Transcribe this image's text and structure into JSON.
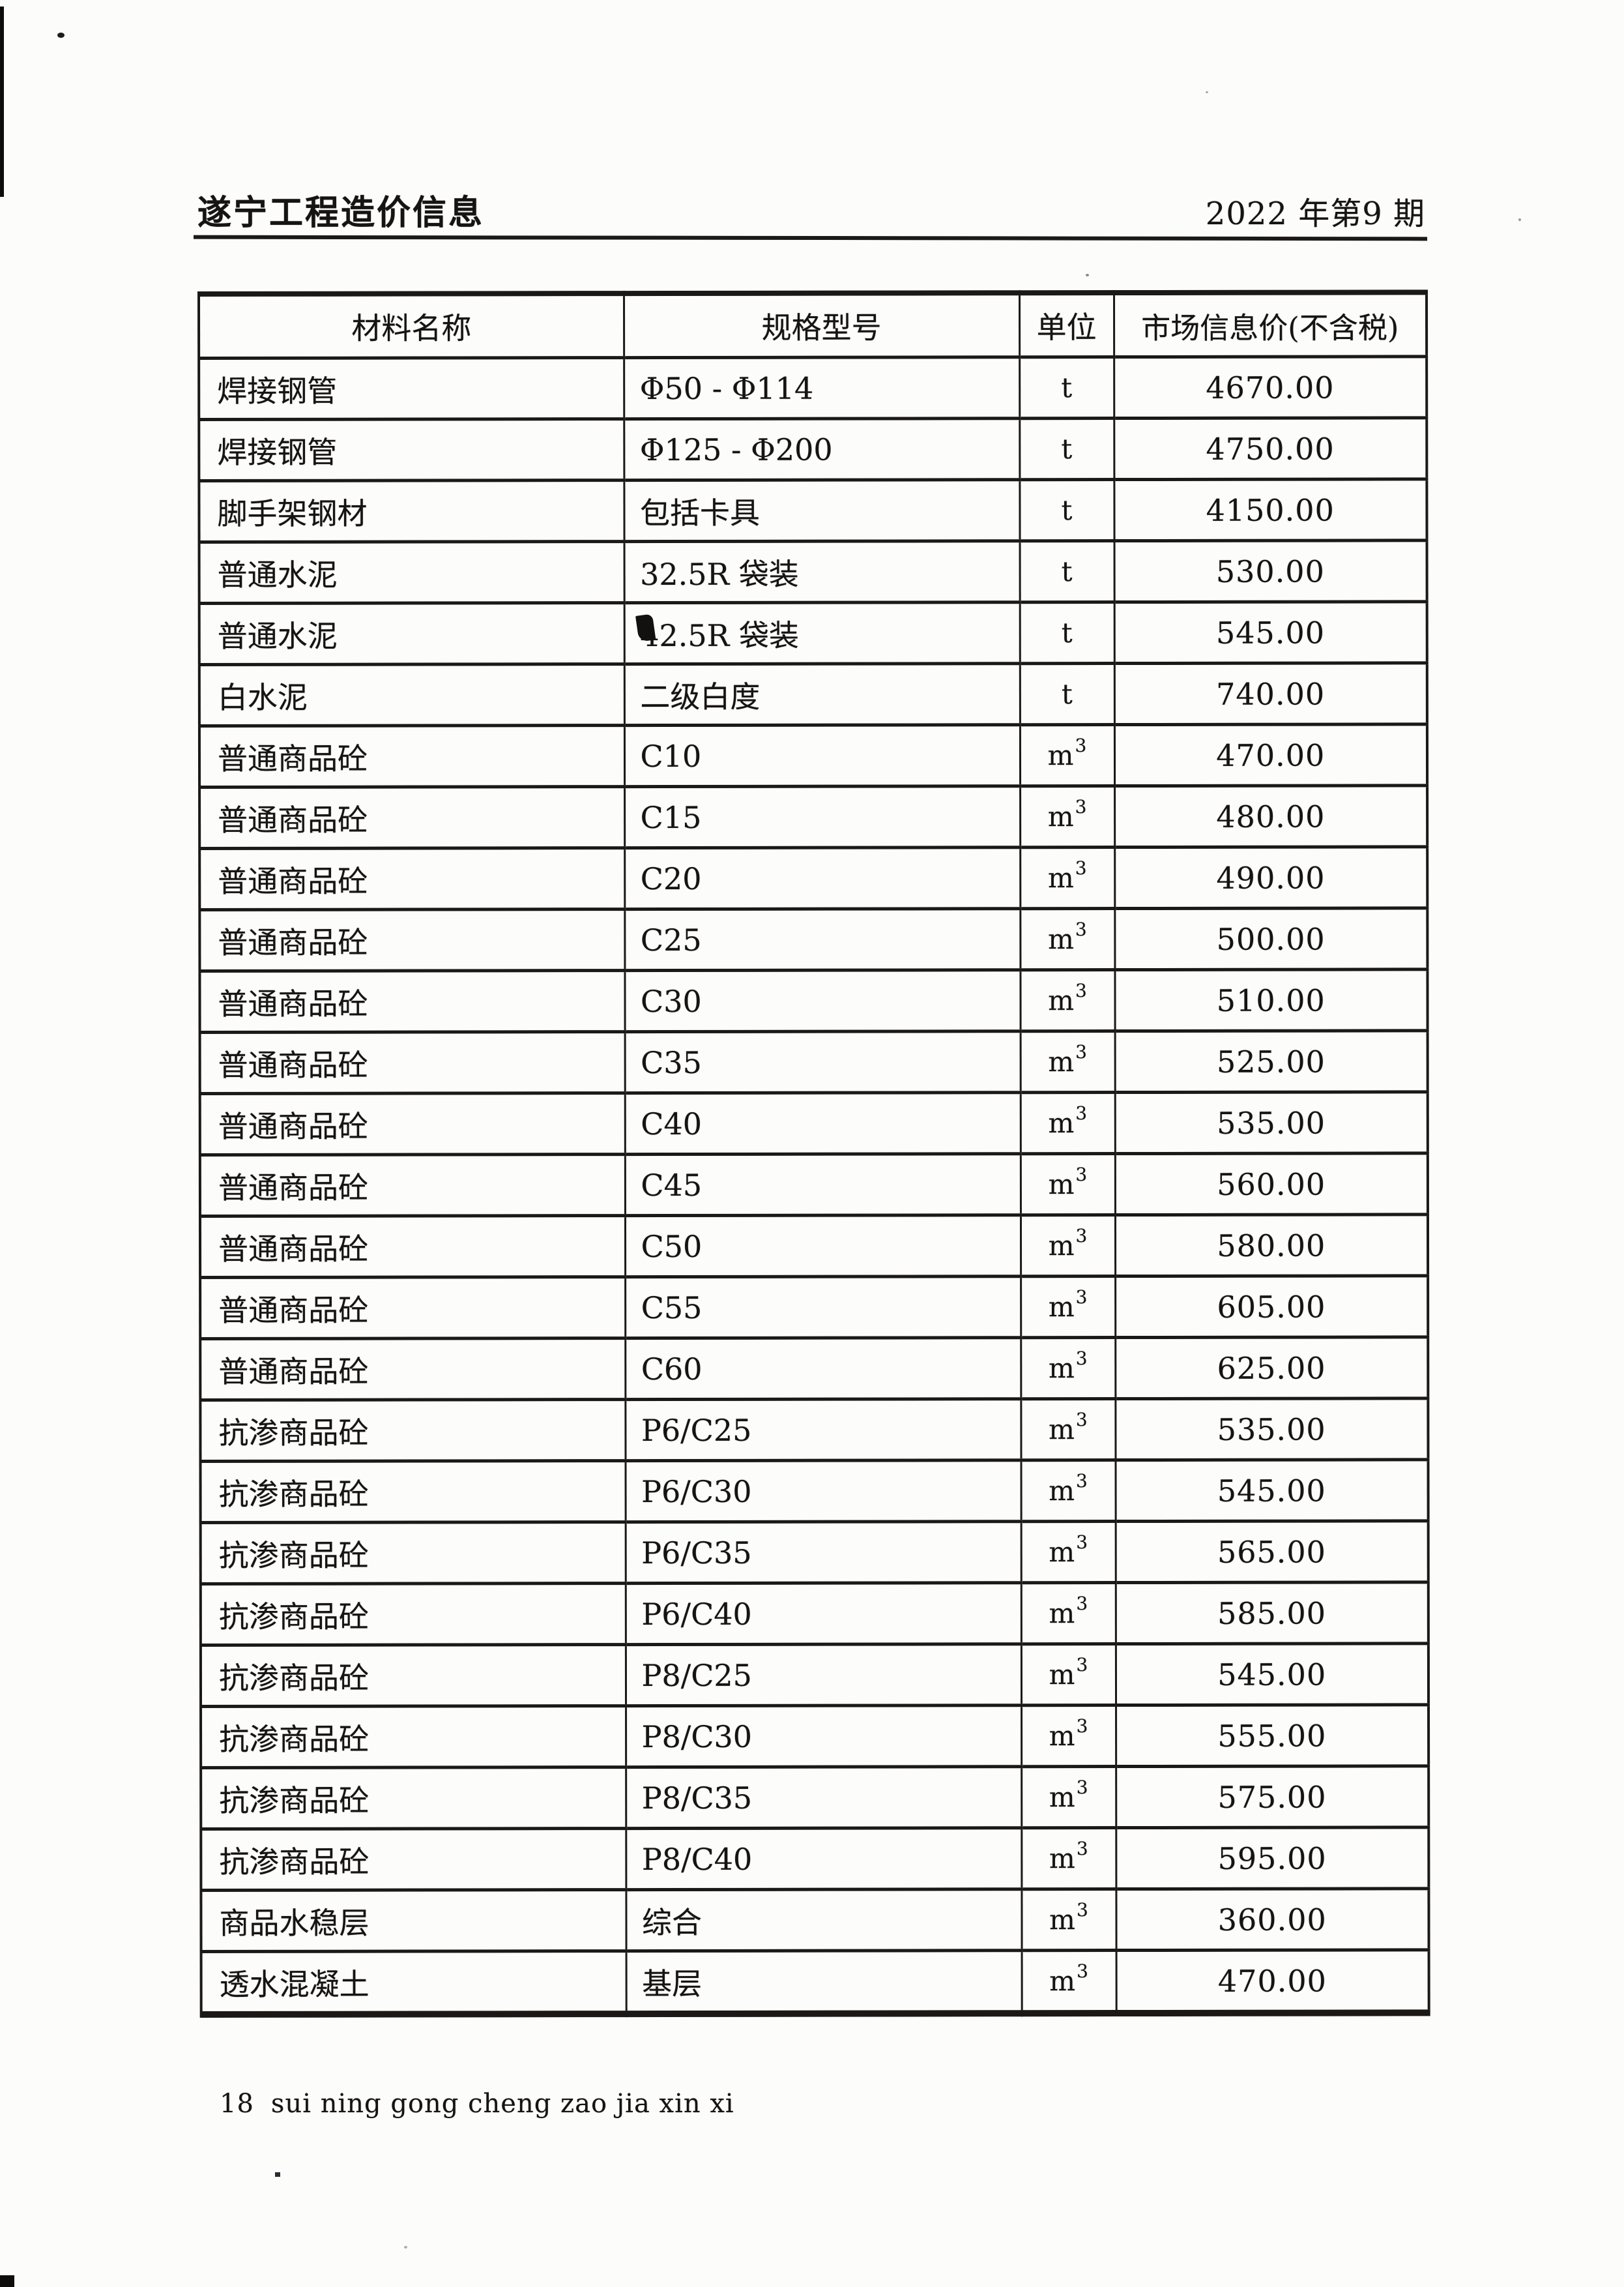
{
  "page": {
    "header_left": "遂宁工程造价信息",
    "header_right": "2022 年第9 期",
    "footer_page_number": "18",
    "footer_pinyin": "sui ning gong cheng zao jia xin xi"
  },
  "table": {
    "columns": [
      "材料名称",
      "规格型号",
      "单位",
      "市场信息价(不含税)"
    ],
    "rows": [
      {
        "name": "焊接钢管",
        "spec": "Φ50 - Φ114",
        "unit": "t",
        "sup": "",
        "price": "4670.00"
      },
      {
        "name": "焊接钢管",
        "spec": "Φ125 - Φ200",
        "unit": "t",
        "sup": "",
        "price": "4750.00"
      },
      {
        "name": "脚手架钢材",
        "spec": "包括卡具",
        "unit": "t",
        "sup": "",
        "price": "4150.00"
      },
      {
        "name": "普通水泥",
        "spec": "32.5R 袋装",
        "unit": "t",
        "sup": "",
        "price": "530.00"
      },
      {
        "name": "普通水泥",
        "spec": "42.5R 袋装",
        "unit": "t",
        "sup": "",
        "price": "545.00"
      },
      {
        "name": "白水泥",
        "spec": "二级白度",
        "unit": "t",
        "sup": "",
        "price": "740.00"
      },
      {
        "name": "普通商品砼",
        "spec": "C10",
        "unit": "m",
        "sup": "3",
        "price": "470.00"
      },
      {
        "name": "普通商品砼",
        "spec": "C15",
        "unit": "m",
        "sup": "3",
        "price": "480.00"
      },
      {
        "name": "普通商品砼",
        "spec": "C20",
        "unit": "m",
        "sup": "3",
        "price": "490.00"
      },
      {
        "name": "普通商品砼",
        "spec": "C25",
        "unit": "m",
        "sup": "3",
        "price": "500.00"
      },
      {
        "name": "普通商品砼",
        "spec": "C30",
        "unit": "m",
        "sup": "3",
        "price": "510.00"
      },
      {
        "name": "普通商品砼",
        "spec": "C35",
        "unit": "m",
        "sup": "3",
        "price": "525.00"
      },
      {
        "name": "普通商品砼",
        "spec": "C40",
        "unit": "m",
        "sup": "3",
        "price": "535.00"
      },
      {
        "name": "普通商品砼",
        "spec": "C45",
        "unit": "m",
        "sup": "3",
        "price": "560.00"
      },
      {
        "name": "普通商品砼",
        "spec": "C50",
        "unit": "m",
        "sup": "3",
        "price": "580.00"
      },
      {
        "name": "普通商品砼",
        "spec": "C55",
        "unit": "m",
        "sup": "3",
        "price": "605.00"
      },
      {
        "name": "普通商品砼",
        "spec": "C60",
        "unit": "m",
        "sup": "3",
        "price": "625.00"
      },
      {
        "name": "抗渗商品砼",
        "spec": "P6/C25",
        "unit": "m",
        "sup": "3",
        "price": "535.00"
      },
      {
        "name": "抗渗商品砼",
        "spec": "P6/C30",
        "unit": "m",
        "sup": "3",
        "price": "545.00"
      },
      {
        "name": "抗渗商品砼",
        "spec": "P6/C35",
        "unit": "m",
        "sup": "3",
        "price": "565.00"
      },
      {
        "name": "抗渗商品砼",
        "spec": "P6/C40",
        "unit": "m",
        "sup": "3",
        "price": "585.00"
      },
      {
        "name": "抗渗商品砼",
        "spec": "P8/C25",
        "unit": "m",
        "sup": "3",
        "price": "545.00"
      },
      {
        "name": "抗渗商品砼",
        "spec": "P8/C30",
        "unit": "m",
        "sup": "3",
        "price": "555.00"
      },
      {
        "name": "抗渗商品砼",
        "spec": "P8/C35",
        "unit": "m",
        "sup": "3",
        "price": "575.00"
      },
      {
        "name": "抗渗商品砼",
        "spec": "P8/C40",
        "unit": "m",
        "sup": "3",
        "price": "595.00"
      },
      {
        "name": "商品水稳层",
        "spec": "综合",
        "unit": "m",
        "sup": "3",
        "price": "360.00"
      },
      {
        "name": "透水混凝土",
        "spec": "基层",
        "unit": "m",
        "sup": "3",
        "price": "470.00"
      }
    ]
  }
}
